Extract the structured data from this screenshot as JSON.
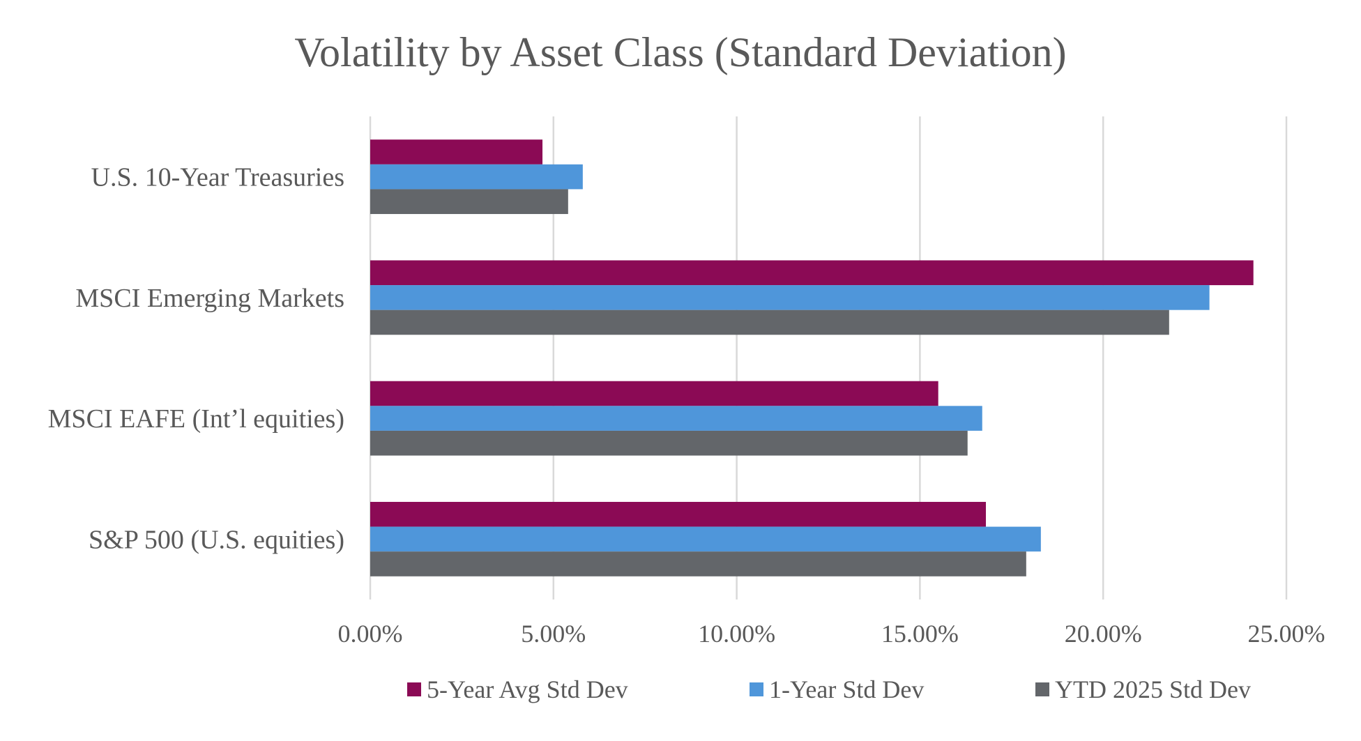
{
  "chart_data": {
    "type": "bar",
    "orientation": "horizontal",
    "title": "Volatility by Asset Class (Standard Deviation)",
    "categories": [
      "U.S. 10-Year Treasuries",
      "MSCI Emerging Markets",
      "MSCI EAFE (Int’l equities)",
      "S&P 500 (U.S. equities)"
    ],
    "series": [
      {
        "name": "5-Year Avg Std Dev",
        "color": "#8B0A55",
        "values": [
          4.7,
          24.1,
          15.5,
          16.8
        ]
      },
      {
        "name": "1-Year Std Dev",
        "color": "#4F96DA",
        "values": [
          5.8,
          22.9,
          16.7,
          18.3
        ]
      },
      {
        "name": "YTD 2025 Std Dev",
        "color": "#63666A",
        "values": [
          5.4,
          21.8,
          16.3,
          17.9
        ]
      }
    ],
    "xlim": [
      0,
      25
    ],
    "x_ticks": [
      {
        "value": 0,
        "label": "0.00%"
      },
      {
        "value": 5,
        "label": "5.00%"
      },
      {
        "value": 10,
        "label": "10.00%"
      },
      {
        "value": 15,
        "label": "15.00%"
      },
      {
        "value": 20,
        "label": "20.00%"
      },
      {
        "value": 25,
        "label": "25.00%"
      }
    ],
    "xlabel": "",
    "ylabel": "",
    "grid": "vertical",
    "legend": "bottom"
  }
}
